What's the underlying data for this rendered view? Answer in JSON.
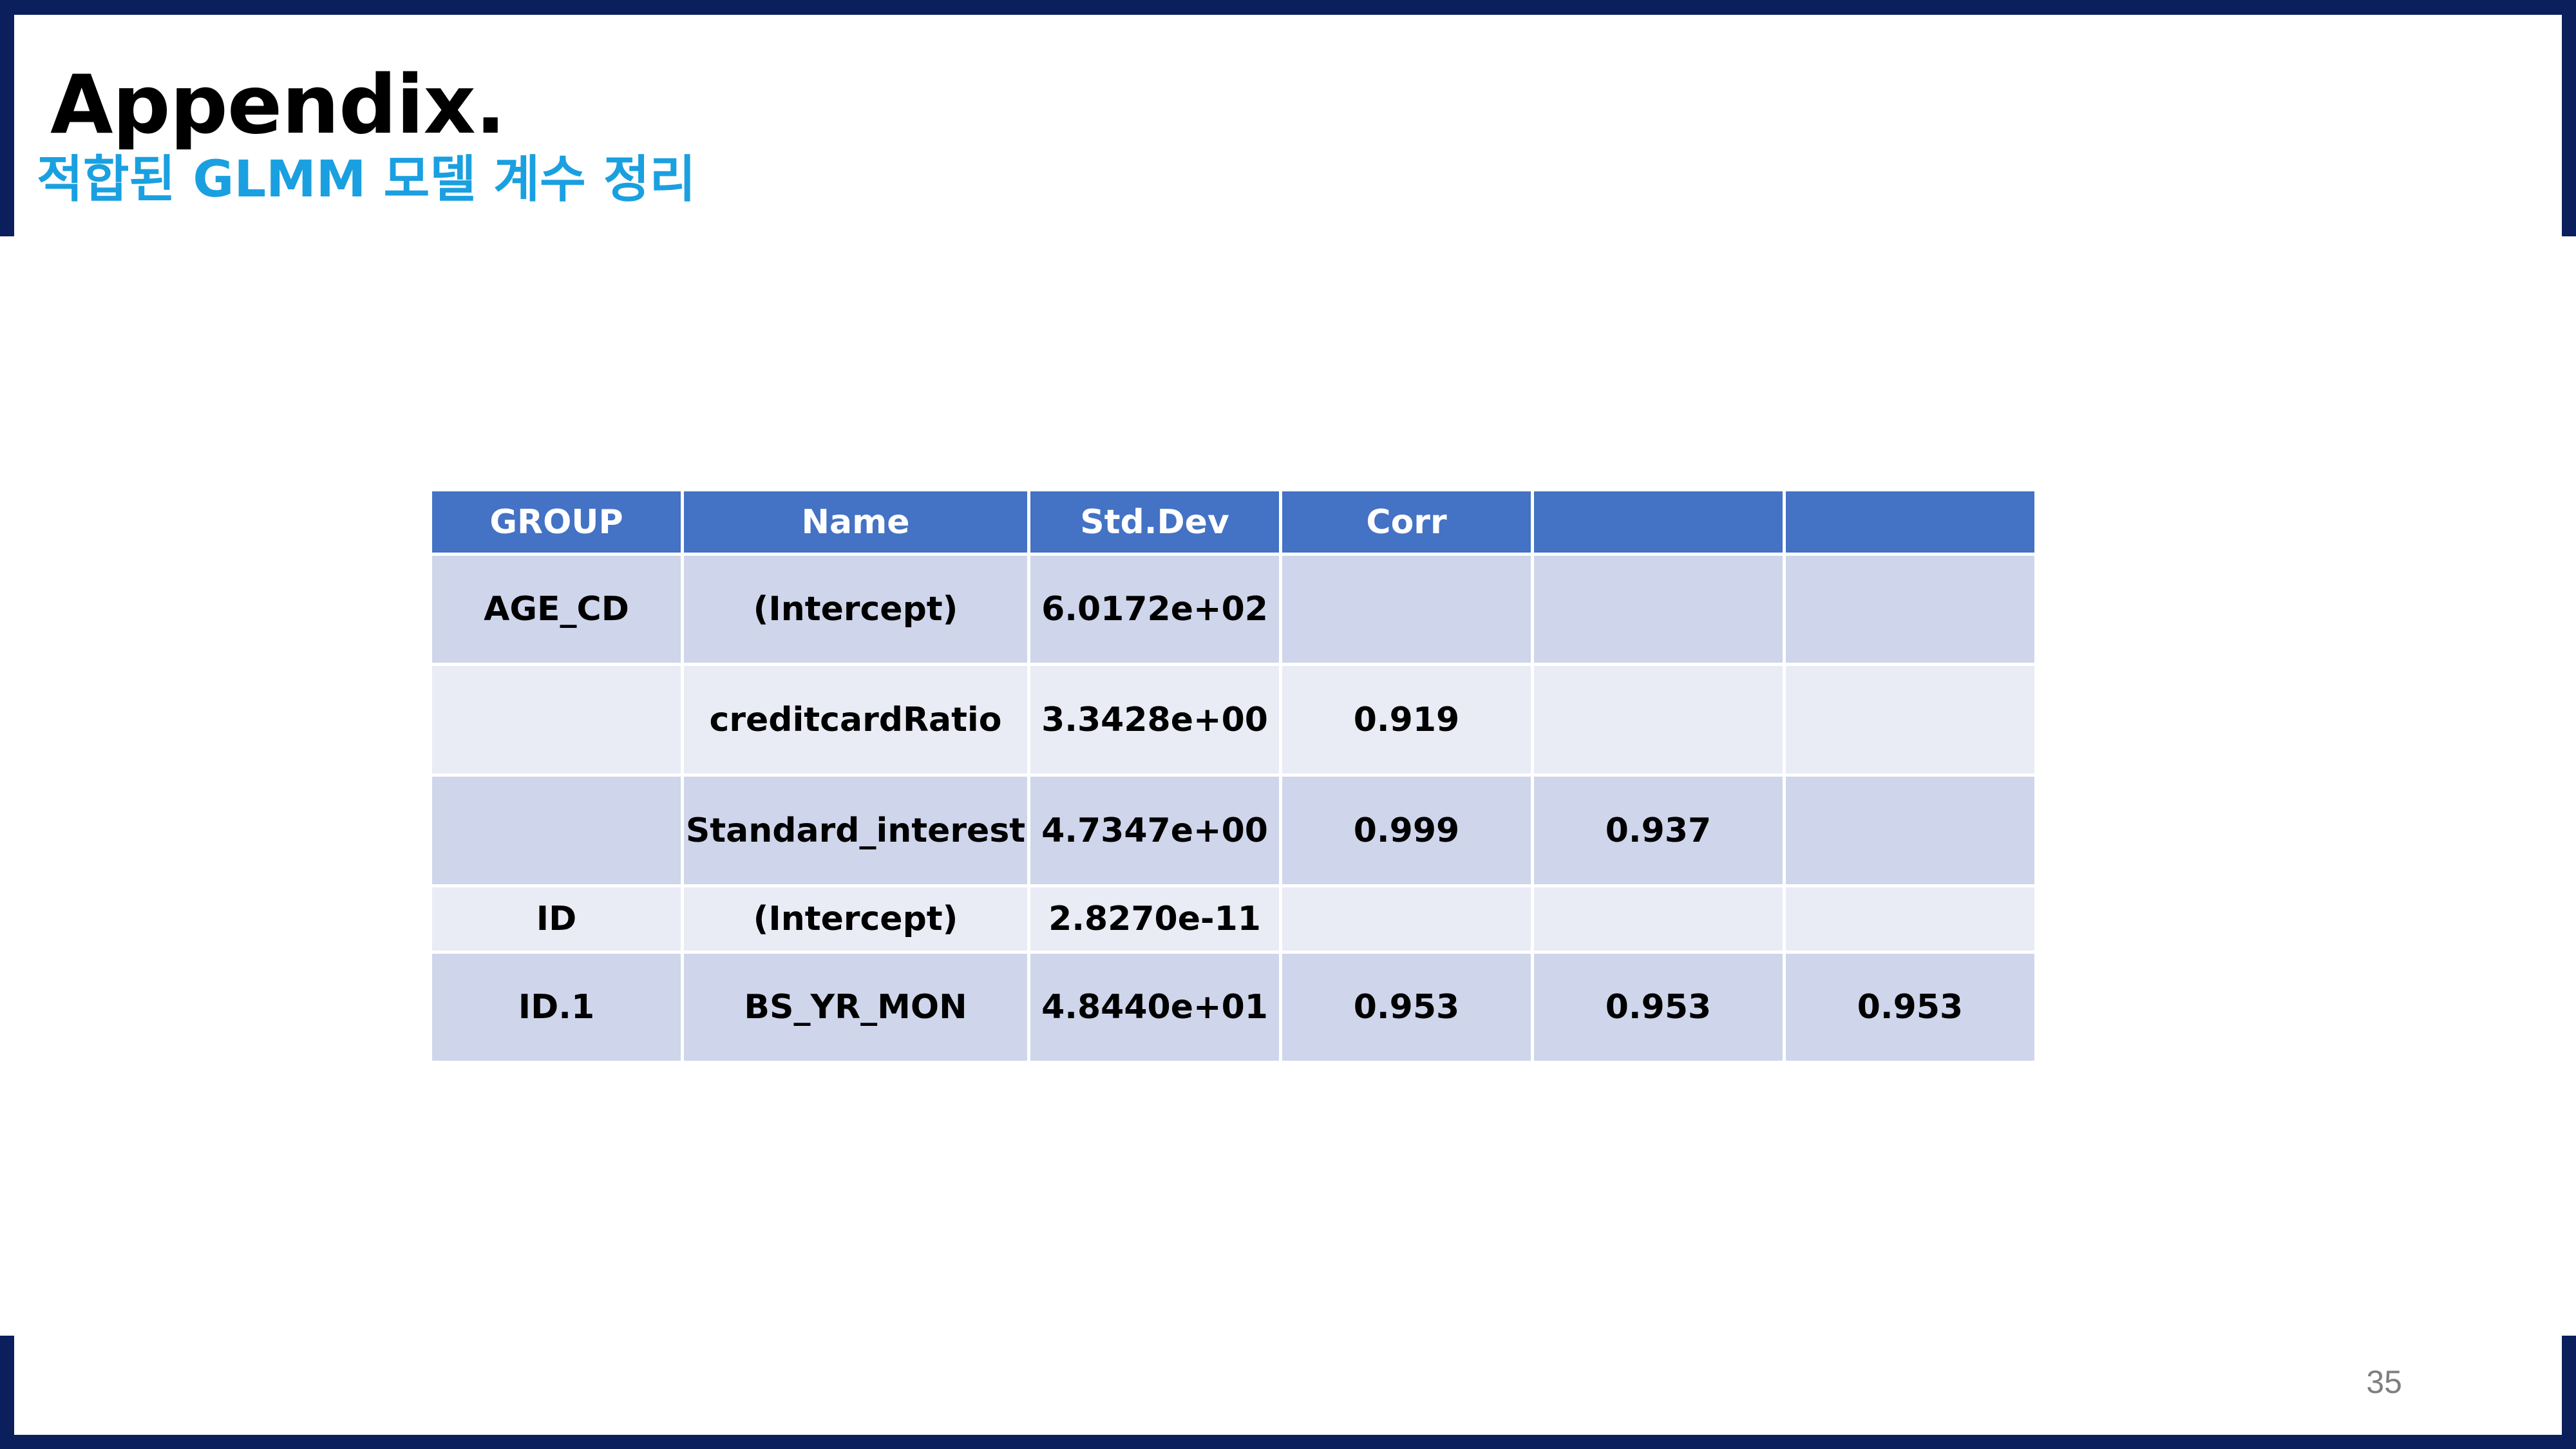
{
  "slide": {
    "title": "Appendix.",
    "subtitle": "적합된 GLMM 모델 계수 정리",
    "page_number": "35"
  },
  "colors": {
    "frame": "#0b1f5c",
    "subtitle": "#1aa0e0",
    "table_header": "#4472c4",
    "row_dark": "#cfd5ea",
    "row_light": "#e9ebf5"
  },
  "table": {
    "headers": [
      "GROUP",
      "Name",
      "Std.Dev",
      "Corr",
      "",
      ""
    ],
    "rows": [
      [
        "AGE_CD",
        "(Intercept)",
        "6.0172e+02",
        "",
        "",
        ""
      ],
      [
        "",
        "creditcardRatio",
        "3.3428e+00",
        "0.919",
        "",
        ""
      ],
      [
        "",
        "Standard_interest",
        "4.7347e+00",
        "0.999",
        "0.937",
        ""
      ],
      [
        "ID",
        "(Intercept)",
        "2.8270e-11",
        "",
        "",
        ""
      ],
      [
        "ID.1",
        "BS_YR_MON",
        "4.8440e+01",
        "0.953",
        "0.953",
        "0.953"
      ]
    ]
  }
}
